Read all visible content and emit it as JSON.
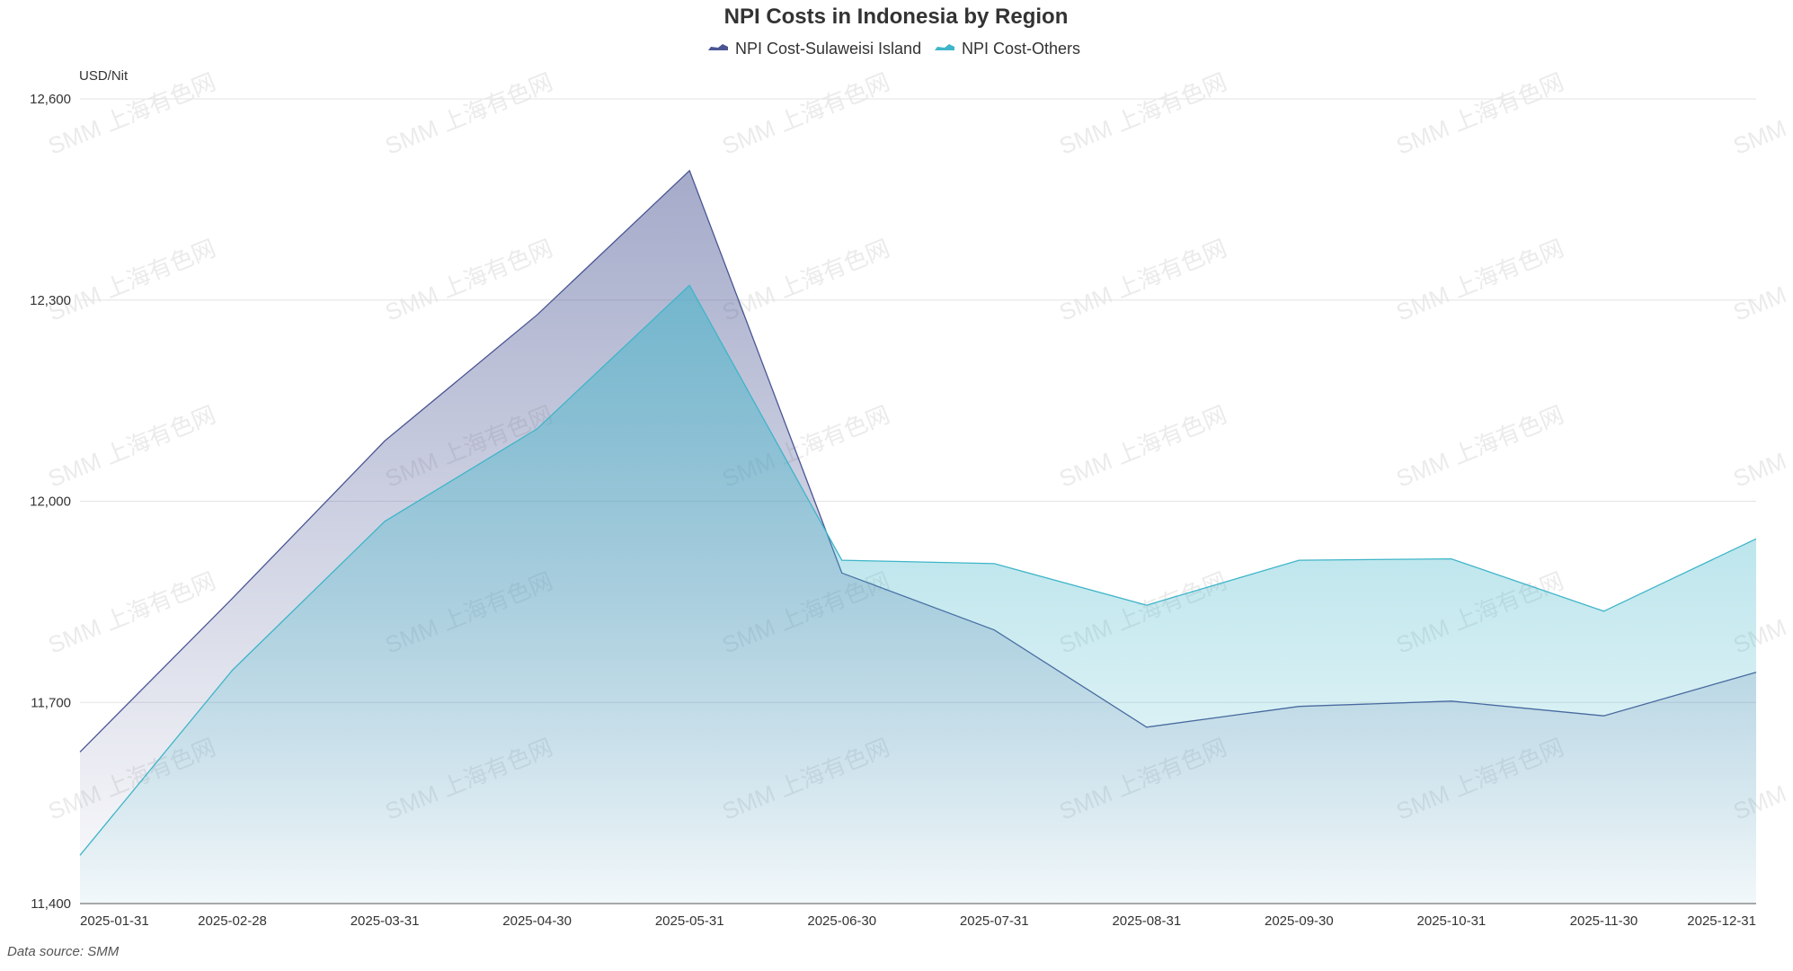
{
  "chart_data": {
    "type": "area",
    "title": "NPI Costs in Indonesia by Region",
    "ylabel": "USD/Nit",
    "xlabel": "",
    "ylim": [
      11400,
      12600
    ],
    "yticks": [
      11400,
      11700,
      12000,
      12300,
      12600
    ],
    "ytick_labels": [
      "11,400",
      "11,700",
      "12,000",
      "12,300",
      "12,600"
    ],
    "categories": [
      "2025-01-31",
      "2025-02-28",
      "2025-03-31",
      "2025-04-30",
      "2025-05-31",
      "2025-06-30",
      "2025-07-31",
      "2025-08-31",
      "2025-09-30",
      "2025-10-31",
      "2025-11-30",
      "2025-12-31"
    ],
    "grid": true,
    "legend_position": "top-center",
    "series": [
      {
        "name": "NPI Cost-Sulaweisi Island",
        "color": "#4a5694",
        "values": [
          11626,
          11855,
          12090,
          12278,
          12493,
          11893,
          11808,
          11663,
          11694,
          11702,
          11680,
          11745
        ]
      },
      {
        "name": "NPI Cost-Others",
        "color": "#3fb5c9",
        "values": [
          11472,
          11748,
          11970,
          12108,
          12322,
          11912,
          11907,
          11845,
          11912,
          11914,
          11836,
          11944
        ]
      }
    ],
    "watermark": "SMM 上海有色网"
  },
  "footer": {
    "source_text": "Data source:  SMM"
  }
}
